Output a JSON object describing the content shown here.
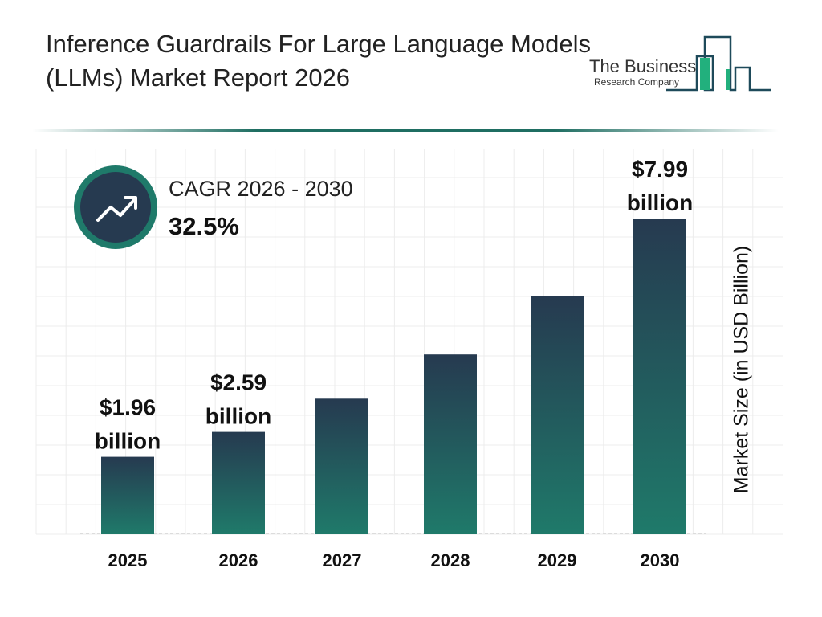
{
  "title": "Inference Guardrails For Large Language Models (LLMs) Market Report 2026",
  "logo": {
    "line1": "The Business",
    "line2": "Research Company"
  },
  "cagr": {
    "label": "CAGR 2026 - 2030",
    "value": "32.5%",
    "icon": "trend-up-arrow-icon"
  },
  "colors": {
    "bar_top": "#263a50",
    "bar_bottom": "#1f7a6a",
    "accent": "#1f6e62"
  },
  "chart_data": {
    "type": "bar",
    "categories": [
      "2025",
      "2026",
      "2027",
      "2028",
      "2029",
      "2030"
    ],
    "values": [
      1.96,
      2.59,
      3.43,
      4.55,
      6.03,
      7.99
    ],
    "data_labels": [
      "$1.96 billion",
      "$2.59 billion",
      "",
      "",
      "",
      "$7.99 billion"
    ],
    "label_lines": [
      [
        "$1.96",
        "billion"
      ],
      [
        "$2.59",
        "billion"
      ],
      null,
      null,
      null,
      [
        "$7.99",
        "billion"
      ]
    ],
    "xlabel": "",
    "ylabel": "Market Size (in USD Billion)",
    "ylim": [
      0,
      7.99
    ],
    "grid": true
  }
}
